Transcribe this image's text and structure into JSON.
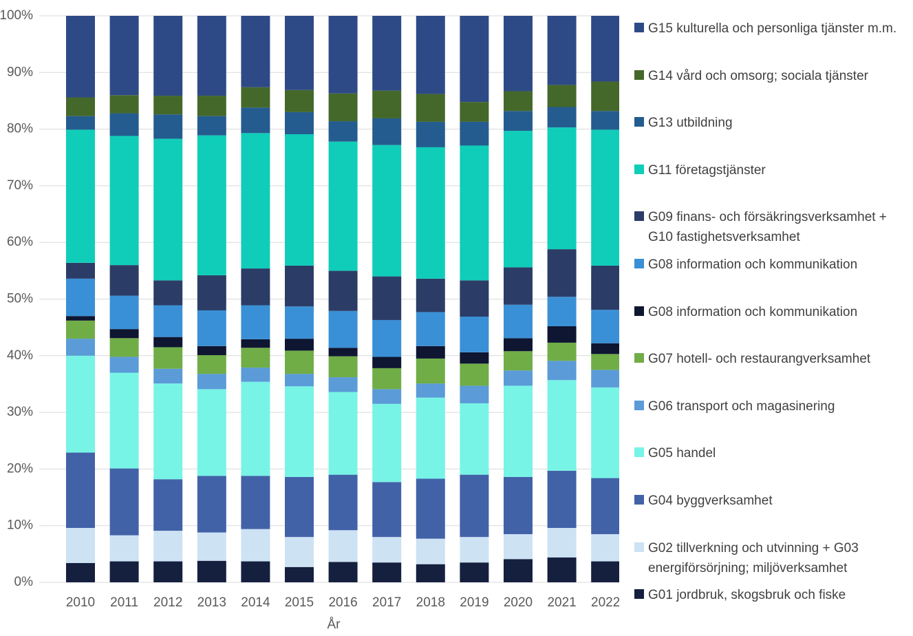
{
  "chart_data": {
    "type": "stacked_bar",
    "xlabel": "År",
    "categories": [
      "2010",
      "2011",
      "2012",
      "2013",
      "2014",
      "2015",
      "2016",
      "2017",
      "2018",
      "2019",
      "2020",
      "2021",
      "2022"
    ],
    "ylim": [
      0,
      100
    ],
    "yticks": [
      {
        "value": 0,
        "label": "0%"
      },
      {
        "value": 10,
        "label": "10%"
      },
      {
        "value": 20,
        "label": "20%"
      },
      {
        "value": 30,
        "label": "30%"
      },
      {
        "value": 40,
        "label": "40%"
      },
      {
        "value": 50,
        "label": "50%"
      },
      {
        "value": 60,
        "label": "60%"
      },
      {
        "value": 70,
        "label": "70%"
      },
      {
        "value": 80,
        "label": "80%"
      },
      {
        "value": 90,
        "label": "90%"
      },
      {
        "value": 100,
        "label": "100%"
      }
    ],
    "grid": true,
    "legend": "right",
    "series": [
      {
        "name": "G01 jordbruk, skogsbruk och fiske",
        "color": "#15203f",
        "values": [
          3.4,
          3.7,
          3.7,
          3.8,
          3.7,
          2.7,
          3.6,
          3.5,
          3.2,
          3.5,
          4.1,
          4.4,
          3.7
        ]
      },
      {
        "name": "G02 tillverkning och utvinning + G03 energiförsörjning; miljöverksamhet",
        "color": "#cde2f3",
        "values": [
          6.2,
          4.6,
          5.4,
          5.0,
          5.7,
          5.3,
          5.6,
          4.5,
          4.5,
          4.5,
          4.4,
          5.2,
          4.8
        ]
      },
      {
        "name": "G04 byggverksamhet",
        "color": "#4262a8",
        "values": [
          13.3,
          11.8,
          9.1,
          10.0,
          9.4,
          10.6,
          9.8,
          9.7,
          10.6,
          11.0,
          10.1,
          10.1,
          9.9
        ]
      },
      {
        "name": "G05 handel",
        "color": "#77f4e6",
        "values": [
          17.1,
          16.9,
          16.9,
          15.3,
          16.6,
          16.0,
          14.6,
          13.8,
          14.3,
          12.6,
          16.1,
          16.0,
          16.0
        ]
      },
      {
        "name": "G06 transport och magasinering",
        "color": "#5b9bd8",
        "values": [
          3.0,
          2.8,
          2.6,
          2.7,
          2.5,
          2.2,
          2.6,
          2.6,
          2.5,
          3.1,
          2.7,
          3.4,
          3.1
        ]
      },
      {
        "name": "G07 hotell- och restaurangverksamhet",
        "color": "#70ad47",
        "values": [
          3.2,
          3.3,
          3.8,
          3.3,
          3.5,
          4.1,
          3.7,
          3.7,
          4.4,
          3.9,
          3.4,
          3.2,
          2.8
        ]
      },
      {
        "name": "G08 information och kommunikation",
        "color": "#0e1631",
        "values": [
          0.8,
          1.6,
          1.8,
          1.6,
          1.5,
          2.1,
          1.5,
          2.0,
          2.2,
          2.0,
          2.3,
          2.9,
          1.9
        ]
      },
      {
        "name": "G08 information och kommunikation",
        "color": "#3a90d6",
        "values": [
          6.6,
          5.9,
          5.6,
          6.3,
          6.0,
          5.7,
          6.5,
          6.5,
          6.0,
          6.3,
          5.9,
          5.2,
          5.9
        ]
      },
      {
        "name": "G09 finans- och försäkringsverksamhet + G10 fastighetsverksamhet",
        "color": "#2b3d66",
        "values": [
          2.8,
          5.4,
          4.4,
          6.2,
          6.5,
          7.2,
          7.1,
          7.7,
          5.9,
          6.4,
          6.6,
          8.4,
          7.8
        ]
      },
      {
        "name": "G11 företagstjänster",
        "color": "#10cdb9",
        "values": [
          23.5,
          22.8,
          25.0,
          24.7,
          23.9,
          23.2,
          22.8,
          23.2,
          23.2,
          23.8,
          24.1,
          21.5,
          24.0
        ]
      },
      {
        "name": "G13 utbildning",
        "color": "#245c8f",
        "values": [
          2.4,
          4.0,
          4.3,
          3.4,
          4.5,
          3.9,
          3.6,
          4.7,
          4.5,
          4.2,
          3.5,
          3.6,
          3.3
        ]
      },
      {
        "name": "G14 vård och omsorg; sociala tjänster",
        "color": "#44682a",
        "values": [
          3.3,
          3.2,
          3.3,
          3.6,
          3.6,
          3.9,
          4.9,
          4.9,
          4.9,
          3.5,
          3.5,
          3.9,
          5.2
        ]
      },
      {
        "name": "G15 kulturella och personliga tjänster m.m.",
        "color": "#2e4a86",
        "values": [
          14.4,
          14.0,
          14.1,
          14.1,
          12.6,
          13.1,
          13.7,
          13.2,
          13.8,
          15.2,
          13.3,
          12.2,
          11.6
        ]
      }
    ]
  }
}
